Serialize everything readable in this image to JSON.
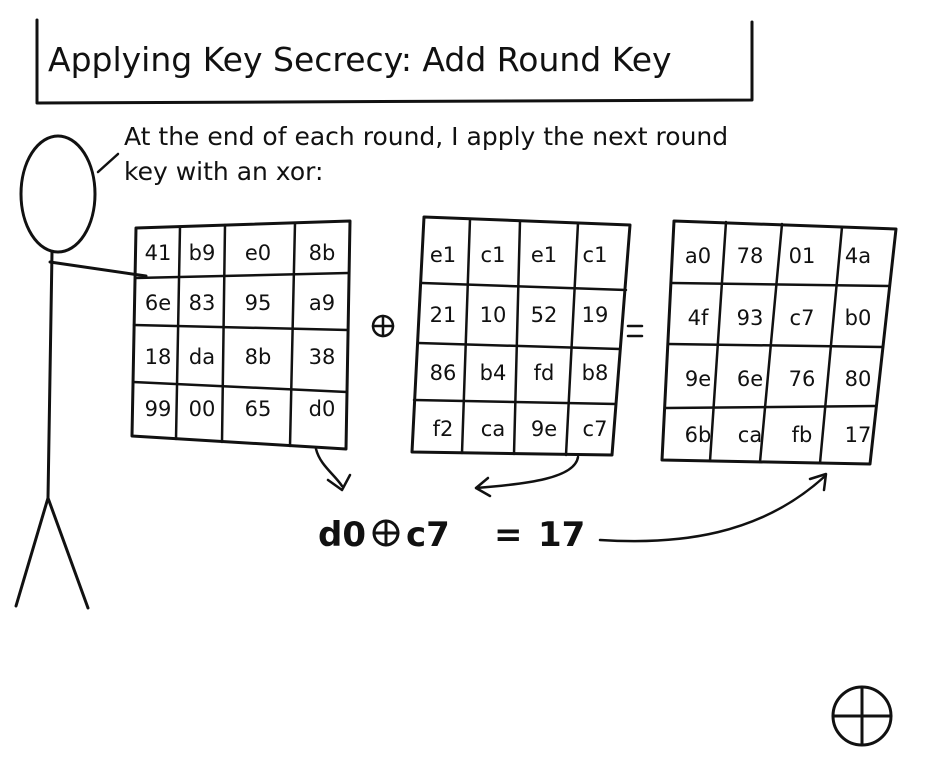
{
  "title": "Applying Key Secrecy: Add Round Key",
  "speech_lines": [
    "At the end of each round, I apply the next round",
    "key with an xor:"
  ],
  "state_matrix": [
    [
      "41",
      "b9",
      "e0",
      "8b"
    ],
    [
      "6e",
      "83",
      "95",
      "a9"
    ],
    [
      "18",
      "da",
      "8b",
      "38"
    ],
    [
      "99",
      "00",
      "65",
      "d0"
    ]
  ],
  "round_key_matrix": [
    [
      "e1",
      "c1",
      "e1",
      "c1"
    ],
    [
      "21",
      "10",
      "52",
      "19"
    ],
    [
      "86",
      "b4",
      "fd",
      "b8"
    ],
    [
      "f2",
      "ca",
      "9e",
      "c7"
    ]
  ],
  "result_matrix": [
    [
      "a0",
      "78",
      "01",
      "4a"
    ],
    [
      "4f",
      "93",
      "c7",
      "b0"
    ],
    [
      "9e",
      "6e",
      "76",
      "80"
    ],
    [
      "6b",
      "ca",
      "fb",
      "17"
    ]
  ],
  "xor_symbol": "⊕",
  "equals_symbol": "=",
  "equation": {
    "a": "d0",
    "op": "⊕",
    "b": "c7",
    "eq": "=",
    "result": "17"
  },
  "icons": {
    "xor": "circle-plus-icon",
    "corner": "circle-plus-icon"
  }
}
